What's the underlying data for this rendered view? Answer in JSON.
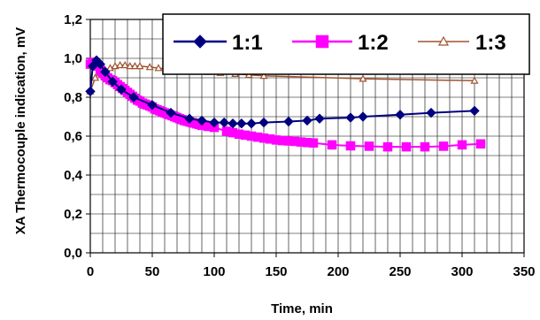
{
  "chart_data": {
    "type": "line",
    "xlabel": "Time, min",
    "ylabel": "XA Thermocouple indication, mV",
    "xlim": [
      0,
      350
    ],
    "ylim": [
      0,
      1.2
    ],
    "x_ticks": [
      "0",
      "50",
      "100",
      "150",
      "200",
      "250",
      "300",
      "350"
    ],
    "y_ticks": [
      "0,0",
      "0,2",
      "0,4",
      "0,6",
      "0,8",
      "1,0",
      "1,2"
    ],
    "grid": true,
    "legend_position": "top-right",
    "series": [
      {
        "name": "1:1",
        "color": "#000080",
        "marker": "diamond",
        "x": [
          0,
          2,
          5,
          8,
          12,
          18,
          25,
          35,
          50,
          65,
          80,
          90,
          100,
          108,
          115,
          122,
          130,
          140,
          160,
          175,
          185,
          210,
          220,
          250,
          275,
          310
        ],
        "y": [
          0.83,
          0.96,
          0.99,
          0.97,
          0.93,
          0.88,
          0.84,
          0.8,
          0.76,
          0.72,
          0.69,
          0.68,
          0.67,
          0.67,
          0.665,
          0.665,
          0.665,
          0.67,
          0.675,
          0.68,
          0.69,
          0.695,
          0.7,
          0.71,
          0.72,
          0.73
        ]
      },
      {
        "name": "1:2",
        "color": "#ff00ff",
        "marker": "square",
        "x": [
          0,
          2,
          4,
          6,
          8,
          10,
          12,
          14,
          16,
          18,
          20,
          22,
          24,
          26,
          28,
          30,
          32,
          34,
          36,
          38,
          40,
          42,
          44,
          46,
          48,
          50,
          52,
          54,
          56,
          58,
          60,
          62,
          64,
          66,
          68,
          70,
          72,
          74,
          76,
          78,
          80,
          82,
          84,
          86,
          88,
          90,
          95,
          100,
          110,
          115,
          120,
          125,
          130,
          135,
          140,
          145,
          150,
          155,
          160,
          165,
          170,
          175,
          180,
          195,
          210,
          225,
          240,
          255,
          270,
          285,
          300,
          315
        ],
        "y": [
          0.97,
          0.98,
          0.97,
          0.96,
          0.94,
          0.925,
          0.91,
          0.9,
          0.89,
          0.885,
          0.875,
          0.865,
          0.855,
          0.845,
          0.835,
          0.825,
          0.815,
          0.805,
          0.795,
          0.785,
          0.78,
          0.77,
          0.765,
          0.76,
          0.755,
          0.75,
          0.74,
          0.735,
          0.73,
          0.725,
          0.72,
          0.715,
          0.71,
          0.705,
          0.7,
          0.695,
          0.69,
          0.685,
          0.68,
          0.677,
          0.673,
          0.67,
          0.667,
          0.663,
          0.66,
          0.655,
          0.65,
          0.645,
          0.625,
          0.618,
          0.61,
          0.605,
          0.6,
          0.595,
          0.59,
          0.585,
          0.58,
          0.577,
          0.575,
          0.573,
          0.57,
          0.567,
          0.565,
          0.555,
          0.55,
          0.548,
          0.545,
          0.545,
          0.545,
          0.548,
          0.555,
          0.56
        ]
      },
      {
        "name": "1:3",
        "color": "#a0522d",
        "marker": "triangle",
        "x": [
          0,
          4,
          8,
          12,
          16,
          20,
          24,
          28,
          32,
          36,
          40,
          48,
          55,
          62,
          68,
          83,
          95,
          105,
          117,
          128,
          140,
          220,
          310
        ],
        "y": [
          0.83,
          0.9,
          0.93,
          0.94,
          0.95,
          0.96,
          0.965,
          0.965,
          0.96,
          0.96,
          0.96,
          0.955,
          0.95,
          0.945,
          0.94,
          0.935,
          0.93,
          0.925,
          0.92,
          0.915,
          0.91,
          0.895,
          0.885
        ]
      }
    ]
  }
}
